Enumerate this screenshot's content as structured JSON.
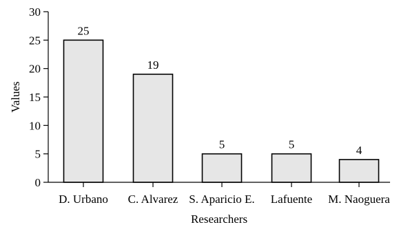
{
  "chart_data": {
    "type": "bar",
    "categories": [
      "D. Urbano",
      "C. Alvarez",
      "S. Aparicio E.",
      "Lafuente",
      "M. Naoguera"
    ],
    "values": [
      25,
      19,
      5,
      5,
      4
    ],
    "data_labels": [
      "25",
      "19",
      "5",
      "5",
      "4"
    ],
    "title": "",
    "xlabel": "Researchers",
    "ylabel": "Values",
    "ylim": [
      0,
      30
    ],
    "yticks": [
      0,
      5,
      10,
      15,
      20,
      25,
      30
    ],
    "ytick_labels": [
      "0",
      "5",
      "10",
      "15",
      "20",
      "25",
      "30"
    ],
    "grid": false,
    "legend": "none",
    "bar_color": "#e6e6e6",
    "bar_edge_color": "#000000"
  }
}
